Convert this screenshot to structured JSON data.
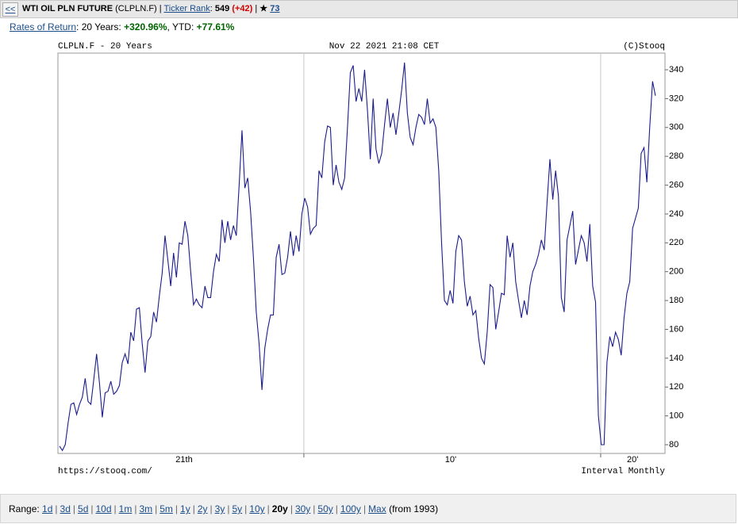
{
  "header": {
    "back": "<<",
    "title": "WTI OIL PLN FUTURE",
    "symbol": "(CLPLN.F)",
    "rank_label": "Ticker Rank",
    "rank": "549",
    "rank_change": "(+42)",
    "star": "★",
    "stars": "73"
  },
  "returns": {
    "label": "Rates of Return",
    "period1": "20 Years:",
    "value1": "+320.96%",
    "period2": "YTD:",
    "value2": "+77.61%"
  },
  "chart_data": {
    "type": "line",
    "title": "CLPLN.F - 20 Years",
    "timestamp": "Nov 22 2021 21:08 CET",
    "credit": "(C)Stooq",
    "source": "https://stooq.com/",
    "interval": "Interval Monthly",
    "color": "#1c1c8c",
    "values": [
      79,
      76,
      80,
      95,
      108,
      109,
      101,
      108,
      113,
      126,
      110,
      108,
      125,
      143,
      123,
      99,
      116,
      117,
      124,
      115,
      117,
      121,
      137,
      143,
      136,
      158,
      152,
      174,
      175,
      150,
      130,
      152,
      155,
      172,
      165,
      183,
      199,
      225,
      208,
      190,
      213,
      196,
      220,
      219,
      235,
      225,
      200,
      177,
      181,
      177,
      175,
      190,
      182,
      182,
      200,
      212,
      207,
      236,
      220,
      235,
      222,
      232,
      225,
      260,
      298,
      258,
      265,
      242,
      210,
      172,
      150,
      118,
      147,
      160,
      170,
      170,
      210,
      219,
      198,
      199,
      210,
      228,
      211,
      225,
      214,
      240,
      251,
      245,
      226,
      230,
      232,
      270,
      265,
      290,
      301,
      300,
      260,
      274,
      262,
      257,
      265,
      300,
      338,
      343,
      318,
      327,
      318,
      340,
      312,
      278,
      320,
      285,
      275,
      282,
      302,
      320,
      300,
      310,
      295,
      310,
      326,
      345,
      310,
      293,
      288,
      300,
      309,
      307,
      302,
      320,
      303,
      306,
      300,
      270,
      220,
      180,
      177,
      187,
      178,
      214,
      225,
      222,
      193,
      176,
      183,
      170,
      173,
      154,
      140,
      136,
      158,
      191,
      189,
      160,
      172,
      185,
      184,
      225,
      210,
      220,
      193,
      180,
      168,
      180,
      170,
      190,
      200,
      205,
      212,
      222,
      215,
      248,
      278,
      250,
      270,
      252,
      182,
      172,
      222,
      232,
      242,
      205,
      215,
      225,
      220,
      207,
      233,
      190,
      179,
      100,
      80,
      80,
      137,
      155,
      148,
      158,
      153,
      142,
      168,
      185,
      193,
      230,
      237,
      244,
      282,
      286,
      262,
      300,
      332,
      322
    ],
    "xlim": [
      -0.56,
      212.36
    ],
    "xticks": [
      {
        "value": 43.7,
        "label": "21th"
      },
      {
        "value": 137.2,
        "label": "10'"
      },
      {
        "value": 201,
        "label": "20'"
      }
    ],
    "xgrid": [
      85.7,
      189.8
    ],
    "ylim": [
      73.95,
      351.55
    ],
    "yticks": [
      80,
      100,
      120,
      140,
      160,
      180,
      200,
      220,
      240,
      260,
      280,
      300,
      320,
      340
    ]
  },
  "range": {
    "label": "Range:",
    "options": [
      "1d",
      "3d",
      "5d",
      "10d",
      "1m",
      "3m",
      "5m",
      "1y",
      "2y",
      "3y",
      "5y",
      "10y",
      "20y",
      "30y",
      "50y",
      "100y",
      "Max"
    ],
    "selected": "20y",
    "note": "(from 1993)"
  }
}
